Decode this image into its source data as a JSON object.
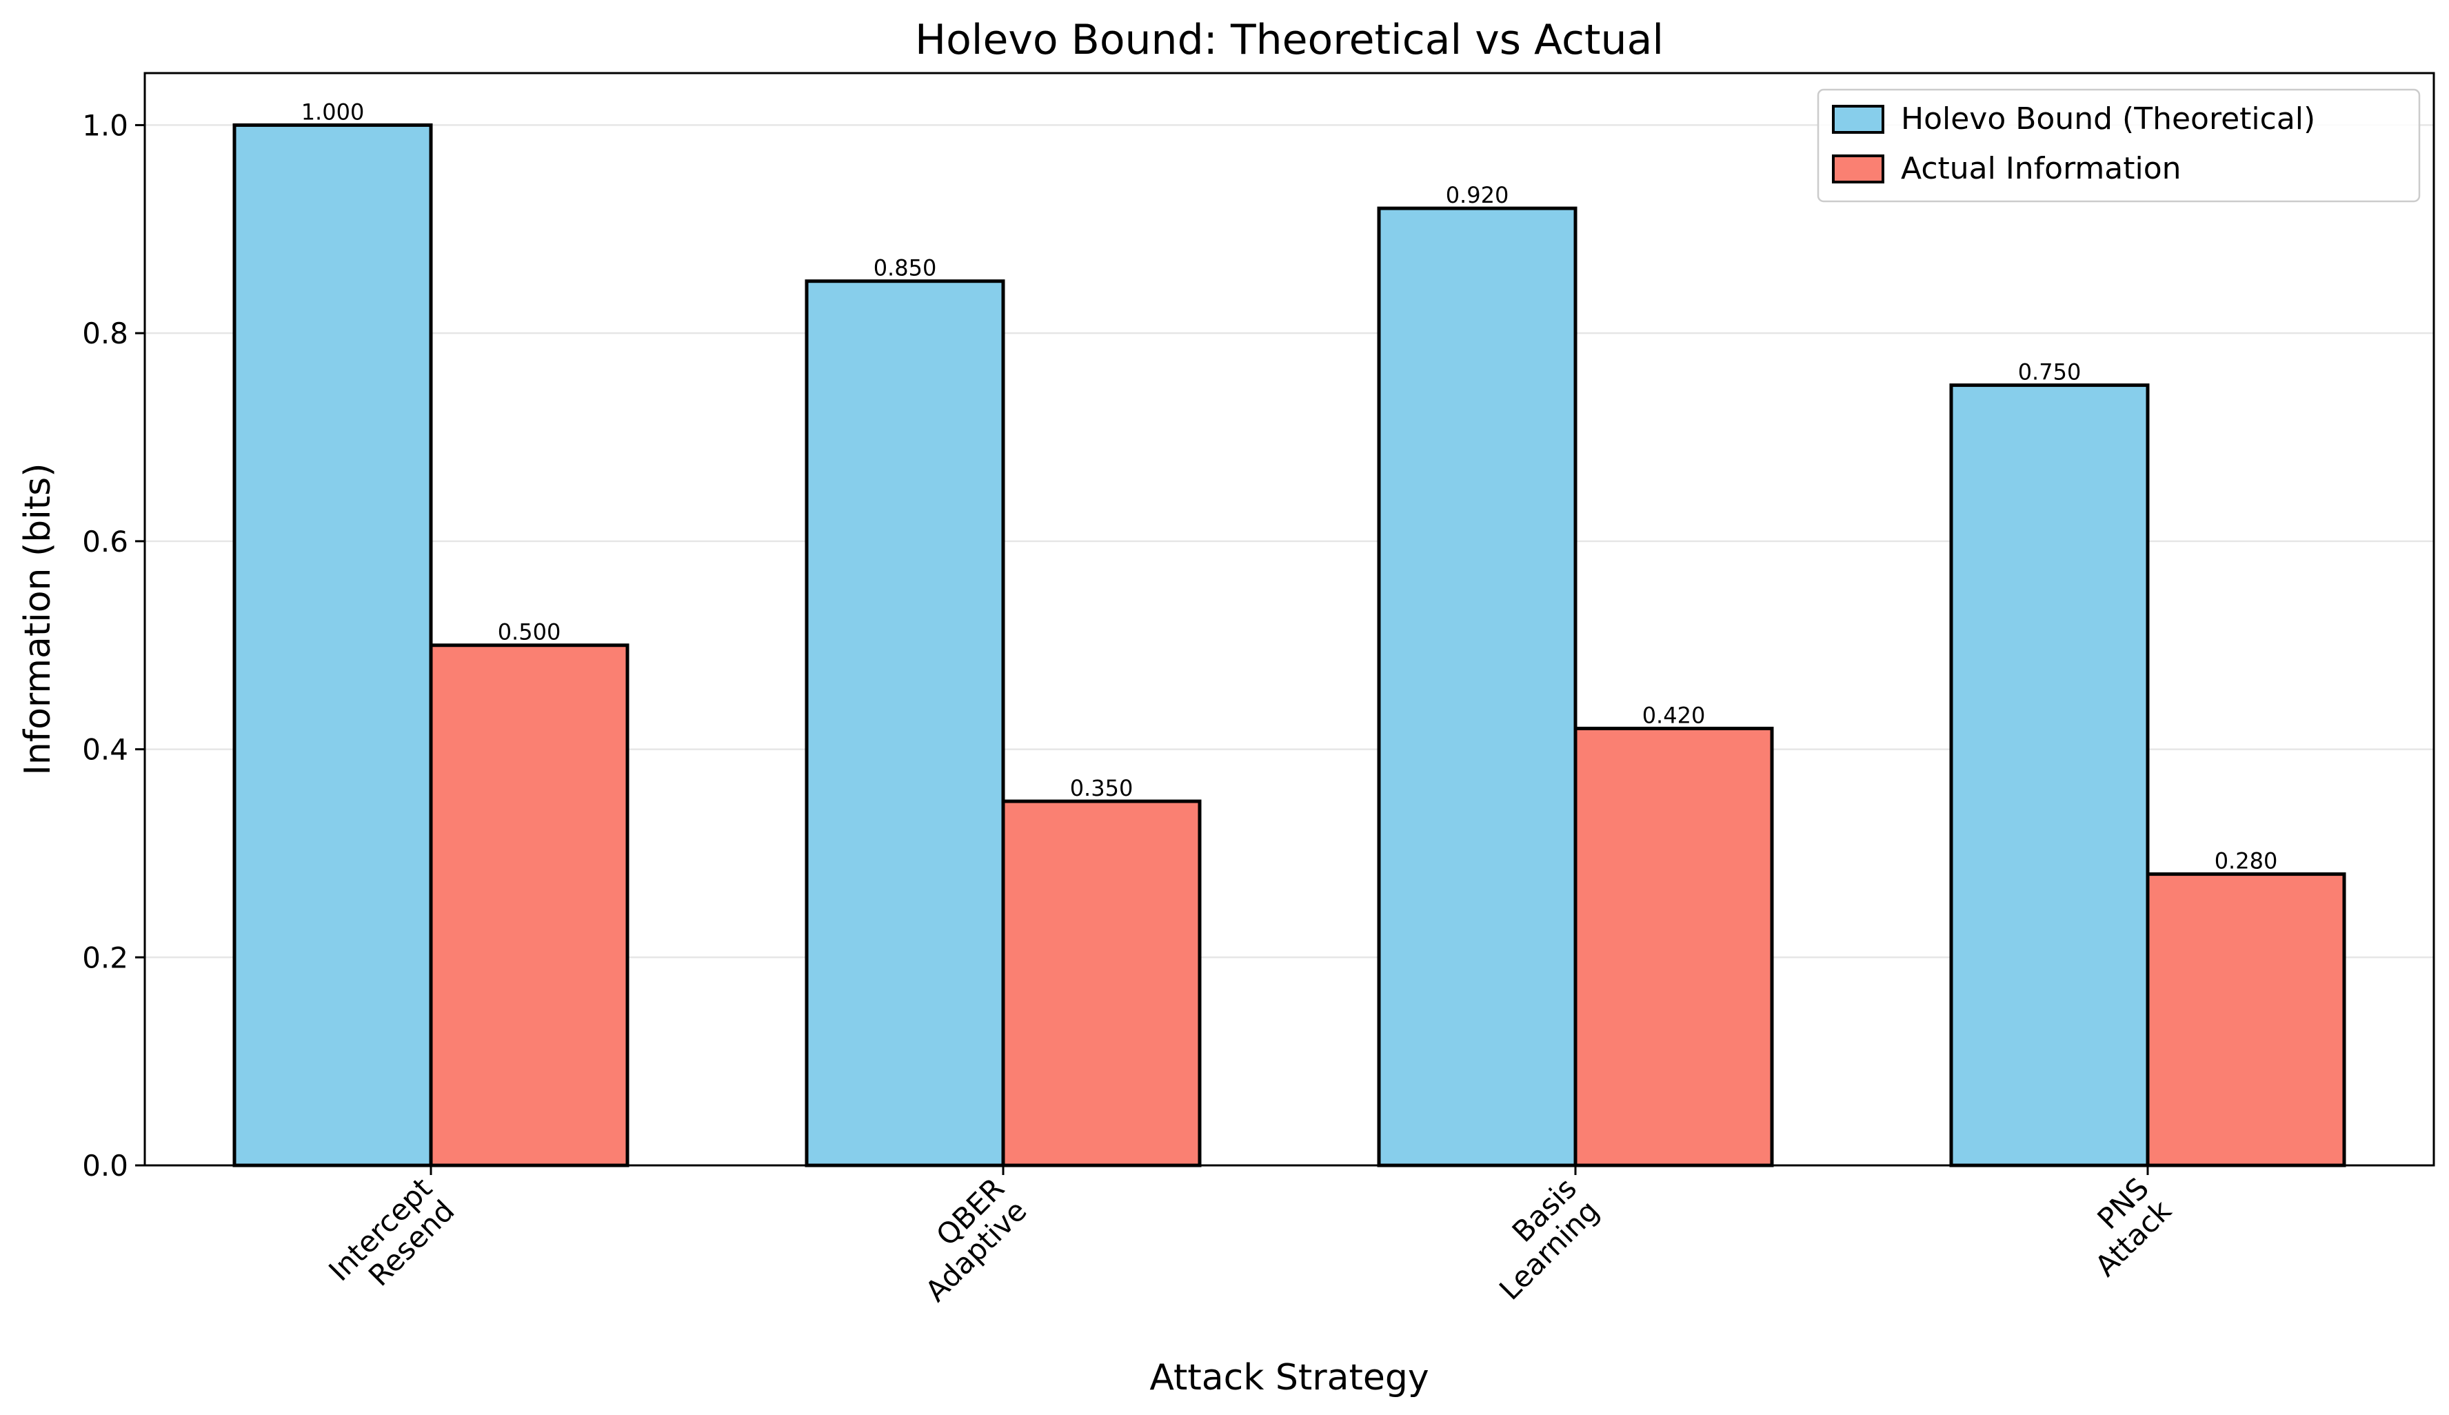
{
  "chart_data": {
    "type": "bar",
    "title": "Holevo Bound: Theoretical vs Actual",
    "xlabel": "Attack Strategy",
    "ylabel": "Information (bits)",
    "categories": [
      [
        "Intercept",
        "Resend"
      ],
      [
        "QBER",
        "Adaptive"
      ],
      [
        "Basis",
        "Learning"
      ],
      [
        "PNS",
        "Attack"
      ]
    ],
    "series": [
      {
        "name": "Holevo Bound (Theoretical)",
        "color": "#87CEEB",
        "values": [
          1.0,
          0.85,
          0.92,
          0.75
        ],
        "labels": [
          "1.000",
          "0.850",
          "0.920",
          "0.750"
        ]
      },
      {
        "name": "Actual Information",
        "color": "#FA8072",
        "values": [
          0.5,
          0.35,
          0.42,
          0.28
        ],
        "labels": [
          "0.500",
          "0.350",
          "0.420",
          "0.280"
        ]
      }
    ],
    "ylim": [
      0,
      1.05
    ],
    "yticks": [
      0.0,
      0.2,
      0.4,
      0.6,
      0.8,
      1.0
    ],
    "ytick_labels": [
      "0.0",
      "0.2",
      "0.4",
      "0.6",
      "0.8",
      "1.0"
    ],
    "grid": "y",
    "legend_position": "upper-right",
    "xtick_rotation_deg": 45
  }
}
